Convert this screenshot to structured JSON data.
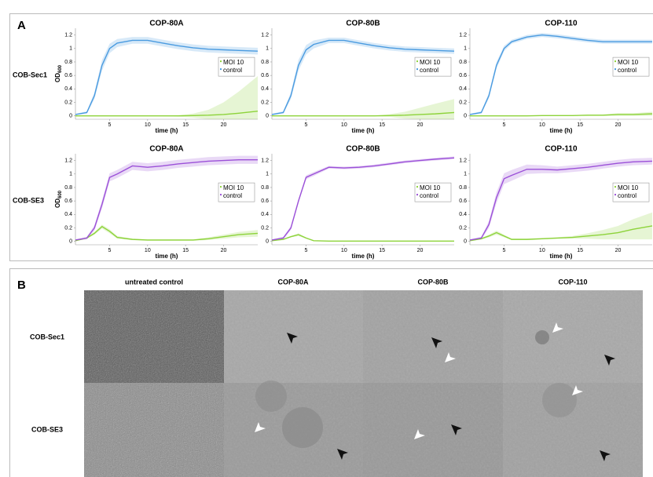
{
  "panel_a": {
    "label": "A",
    "row_labels": [
      "COB-Sec1",
      "COB-SE3"
    ]
  },
  "chart_data": [
    {
      "type": "line",
      "title": "COP-80A",
      "x_label": "time (h)",
      "y_label": "OD",
      "y_label_subscript": "600",
      "x": [
        0.5,
        2,
        3,
        4,
        5,
        6,
        8,
        10,
        12,
        14,
        16,
        18,
        20,
        22,
        24.5
      ],
      "xlim": [
        0.5,
        24.5
      ],
      "xticks": [
        5,
        10,
        15,
        20
      ],
      "ylim": [
        -0.05,
        1.3
      ],
      "yticks": [
        0,
        0.2,
        0.4,
        0.6,
        0.8,
        1,
        1.2
      ],
      "legend": "right",
      "series": [
        {
          "name": "MOI 10",
          "color": "#8dd33a",
          "values": [
            0,
            0,
            0,
            0,
            0,
            0,
            0,
            0,
            0,
            0,
            0.005,
            0.01,
            0.02,
            0.04,
            0.07
          ],
          "error": [
            0,
            0,
            0,
            0,
            0,
            0,
            0,
            0,
            0.005,
            0.01,
            0.03,
            0.08,
            0.18,
            0.32,
            0.52
          ]
        },
        {
          "name": "control",
          "color": "#4a9be0",
          "values": [
            0.02,
            0.05,
            0.3,
            0.75,
            1.0,
            1.08,
            1.12,
            1.12,
            1.08,
            1.04,
            1.01,
            0.99,
            0.98,
            0.97,
            0.96
          ],
          "error": [
            0.01,
            0.02,
            0.05,
            0.08,
            0.07,
            0.06,
            0.05,
            0.05,
            0.05,
            0.05,
            0.05,
            0.05,
            0.05,
            0.05,
            0.05
          ]
        }
      ]
    },
    {
      "type": "line",
      "title": "COP-80B",
      "x_label": "time (h)",
      "x": [
        0.5,
        2,
        3,
        4,
        5,
        6,
        8,
        10,
        12,
        14,
        16,
        18,
        20,
        22,
        24.5
      ],
      "xlim": [
        0.5,
        24.5
      ],
      "xticks": [
        5,
        10,
        15,
        20
      ],
      "ylim": [
        -0.05,
        1.3
      ],
      "yticks": [
        0,
        0.2,
        0.4,
        0.6,
        0.8,
        1,
        1.2
      ],
      "legend": "right",
      "series": [
        {
          "name": "MOI 10",
          "color": "#8dd33a",
          "values": [
            0,
            0,
            0,
            0,
            0,
            0,
            0,
            0,
            0,
            0,
            0.005,
            0.01,
            0.02,
            0.03,
            0.05
          ],
          "error": [
            0,
            0,
            0,
            0,
            0,
            0,
            0,
            0,
            0,
            0.005,
            0.02,
            0.05,
            0.1,
            0.15,
            0.2
          ]
        },
        {
          "name": "control",
          "color": "#4a9be0",
          "values": [
            0.02,
            0.05,
            0.3,
            0.75,
            0.98,
            1.06,
            1.12,
            1.12,
            1.08,
            1.04,
            1.01,
            0.99,
            0.98,
            0.97,
            0.96
          ],
          "error": [
            0.01,
            0.02,
            0.05,
            0.08,
            0.07,
            0.06,
            0.04,
            0.04,
            0.04,
            0.04,
            0.04,
            0.04,
            0.04,
            0.04,
            0.04
          ]
        }
      ]
    },
    {
      "type": "line",
      "title": "COP-110",
      "x_label": "time (h)",
      "x": [
        0.5,
        2,
        3,
        4,
        5,
        6,
        8,
        10,
        12,
        14,
        16,
        18,
        20,
        22,
        24.5
      ],
      "xlim": [
        0.5,
        24.5
      ],
      "xticks": [
        5,
        10,
        15,
        20
      ],
      "ylim": [
        -0.05,
        1.3
      ],
      "yticks": [
        0,
        0.2,
        0.4,
        0.6,
        0.8,
        1,
        1.2
      ],
      "legend": "right",
      "series": [
        {
          "name": "MOI 10",
          "color": "#8dd33a",
          "values": [
            0,
            0,
            0,
            0,
            0,
            0,
            0,
            0.005,
            0.005,
            0.005,
            0.01,
            0.01,
            0.02,
            0.02,
            0.03
          ],
          "error": [
            0,
            0,
            0,
            0,
            0,
            0,
            0,
            0,
            0,
            0,
            0.01,
            0.01,
            0.02,
            0.02,
            0.03
          ]
        },
        {
          "name": "control",
          "color": "#4a9be0",
          "values": [
            0.02,
            0.05,
            0.3,
            0.75,
            1.0,
            1.1,
            1.17,
            1.2,
            1.18,
            1.15,
            1.12,
            1.1,
            1.1,
            1.1,
            1.1
          ],
          "error": [
            0.01,
            0.02,
            0.04,
            0.05,
            0.04,
            0.03,
            0.03,
            0.03,
            0.03,
            0.03,
            0.03,
            0.03,
            0.03,
            0.03,
            0.03
          ]
        }
      ]
    },
    {
      "type": "line",
      "title": "COP-80A",
      "x_label": "time (h)",
      "y_label": "OD",
      "y_label_subscript": "600",
      "x": [
        0.5,
        2,
        3,
        4,
        5,
        6,
        8,
        10,
        12,
        14,
        16,
        18,
        20,
        22,
        24.5
      ],
      "xlim": [
        0.5,
        24.5
      ],
      "xticks": [
        5,
        10,
        15,
        20
      ],
      "ylim": [
        -0.05,
        1.3
      ],
      "yticks": [
        0,
        0.2,
        0.4,
        0.6,
        0.8,
        1,
        1.2
      ],
      "legend": "right",
      "series": [
        {
          "name": "MOI 10",
          "color": "#8dd33a",
          "values": [
            0.01,
            0.05,
            0.12,
            0.22,
            0.15,
            0.06,
            0.03,
            0.02,
            0.02,
            0.02,
            0.02,
            0.04,
            0.07,
            0.1,
            0.12
          ],
          "error": [
            0,
            0.01,
            0.02,
            0.03,
            0.03,
            0.02,
            0.01,
            0.01,
            0.01,
            0.01,
            0.01,
            0.02,
            0.03,
            0.04,
            0.05
          ]
        },
        {
          "name": "control",
          "color": "#9b50d8",
          "values": [
            0.02,
            0.05,
            0.2,
            0.55,
            0.95,
            1.0,
            1.12,
            1.1,
            1.12,
            1.15,
            1.17,
            1.19,
            1.2,
            1.21,
            1.21
          ],
          "error": [
            0.01,
            0.02,
            0.04,
            0.06,
            0.06,
            0.06,
            0.06,
            0.06,
            0.06,
            0.06,
            0.06,
            0.06,
            0.06,
            0.06,
            0.06
          ]
        }
      ]
    },
    {
      "type": "line",
      "title": "COP-80B",
      "x_label": "time (h)",
      "x": [
        0.5,
        2,
        3,
        4,
        5,
        6,
        8,
        10,
        12,
        14,
        16,
        18,
        20,
        22,
        24.5
      ],
      "xlim": [
        0.5,
        24.5
      ],
      "xticks": [
        5,
        10,
        15,
        20
      ],
      "ylim": [
        -0.05,
        1.3
      ],
      "yticks": [
        0,
        0.2,
        0.4,
        0.6,
        0.8,
        1,
        1.2
      ],
      "legend": "right",
      "series": [
        {
          "name": "MOI 10",
          "color": "#8dd33a",
          "values": [
            0.01,
            0.03,
            0.07,
            0.1,
            0.05,
            0.01,
            0.005,
            0.005,
            0.005,
            0.005,
            0.005,
            0.005,
            0.005,
            0.005,
            0.005
          ],
          "error": [
            0,
            0.01,
            0.01,
            0.02,
            0.01,
            0,
            0,
            0,
            0,
            0,
            0,
            0,
            0,
            0,
            0
          ]
        },
        {
          "name": "control",
          "color": "#9b50d8",
          "values": [
            0.02,
            0.05,
            0.2,
            0.6,
            0.95,
            1.0,
            1.1,
            1.09,
            1.1,
            1.12,
            1.15,
            1.18,
            1.2,
            1.22,
            1.24
          ],
          "error": [
            0.01,
            0.02,
            0.03,
            0.03,
            0.03,
            0.03,
            0.02,
            0.02,
            0.02,
            0.02,
            0.02,
            0.02,
            0.02,
            0.02,
            0.02
          ]
        }
      ]
    },
    {
      "type": "line",
      "title": "COP-110",
      "x_label": "time (h)",
      "x": [
        0.5,
        2,
        3,
        4,
        5,
        6,
        8,
        10,
        12,
        14,
        16,
        18,
        20,
        22,
        24.5
      ],
      "xlim": [
        0.5,
        24.5
      ],
      "xticks": [
        5,
        10,
        15,
        20
      ],
      "ylim": [
        -0.05,
        1.3
      ],
      "yticks": [
        0,
        0.2,
        0.4,
        0.6,
        0.8,
        1,
        1.2
      ],
      "legend": "right",
      "series": [
        {
          "name": "MOI 10",
          "color": "#8dd33a",
          "values": [
            0.01,
            0.04,
            0.08,
            0.13,
            0.08,
            0.03,
            0.03,
            0.04,
            0.05,
            0.06,
            0.08,
            0.1,
            0.13,
            0.18,
            0.23
          ],
          "error": [
            0,
            0.01,
            0.02,
            0.03,
            0.02,
            0.01,
            0.01,
            0.01,
            0.01,
            0.02,
            0.04,
            0.07,
            0.1,
            0.15,
            0.2
          ]
        },
        {
          "name": "control",
          "color": "#9b50d8",
          "values": [
            0.02,
            0.05,
            0.25,
            0.65,
            0.93,
            0.98,
            1.07,
            1.07,
            1.06,
            1.08,
            1.1,
            1.13,
            1.16,
            1.18,
            1.19
          ],
          "error": [
            0.01,
            0.02,
            0.05,
            0.08,
            0.08,
            0.08,
            0.07,
            0.06,
            0.05,
            0.05,
            0.05,
            0.05,
            0.05,
            0.05,
            0.05
          ]
        }
      ]
    }
  ],
  "panel_b": {
    "label": "B",
    "columns": [
      "untreated control",
      "COP-80A",
      "COP-80B",
      "COP-110"
    ],
    "rows": [
      "COB-Sec1",
      "COB-SE3"
    ]
  }
}
